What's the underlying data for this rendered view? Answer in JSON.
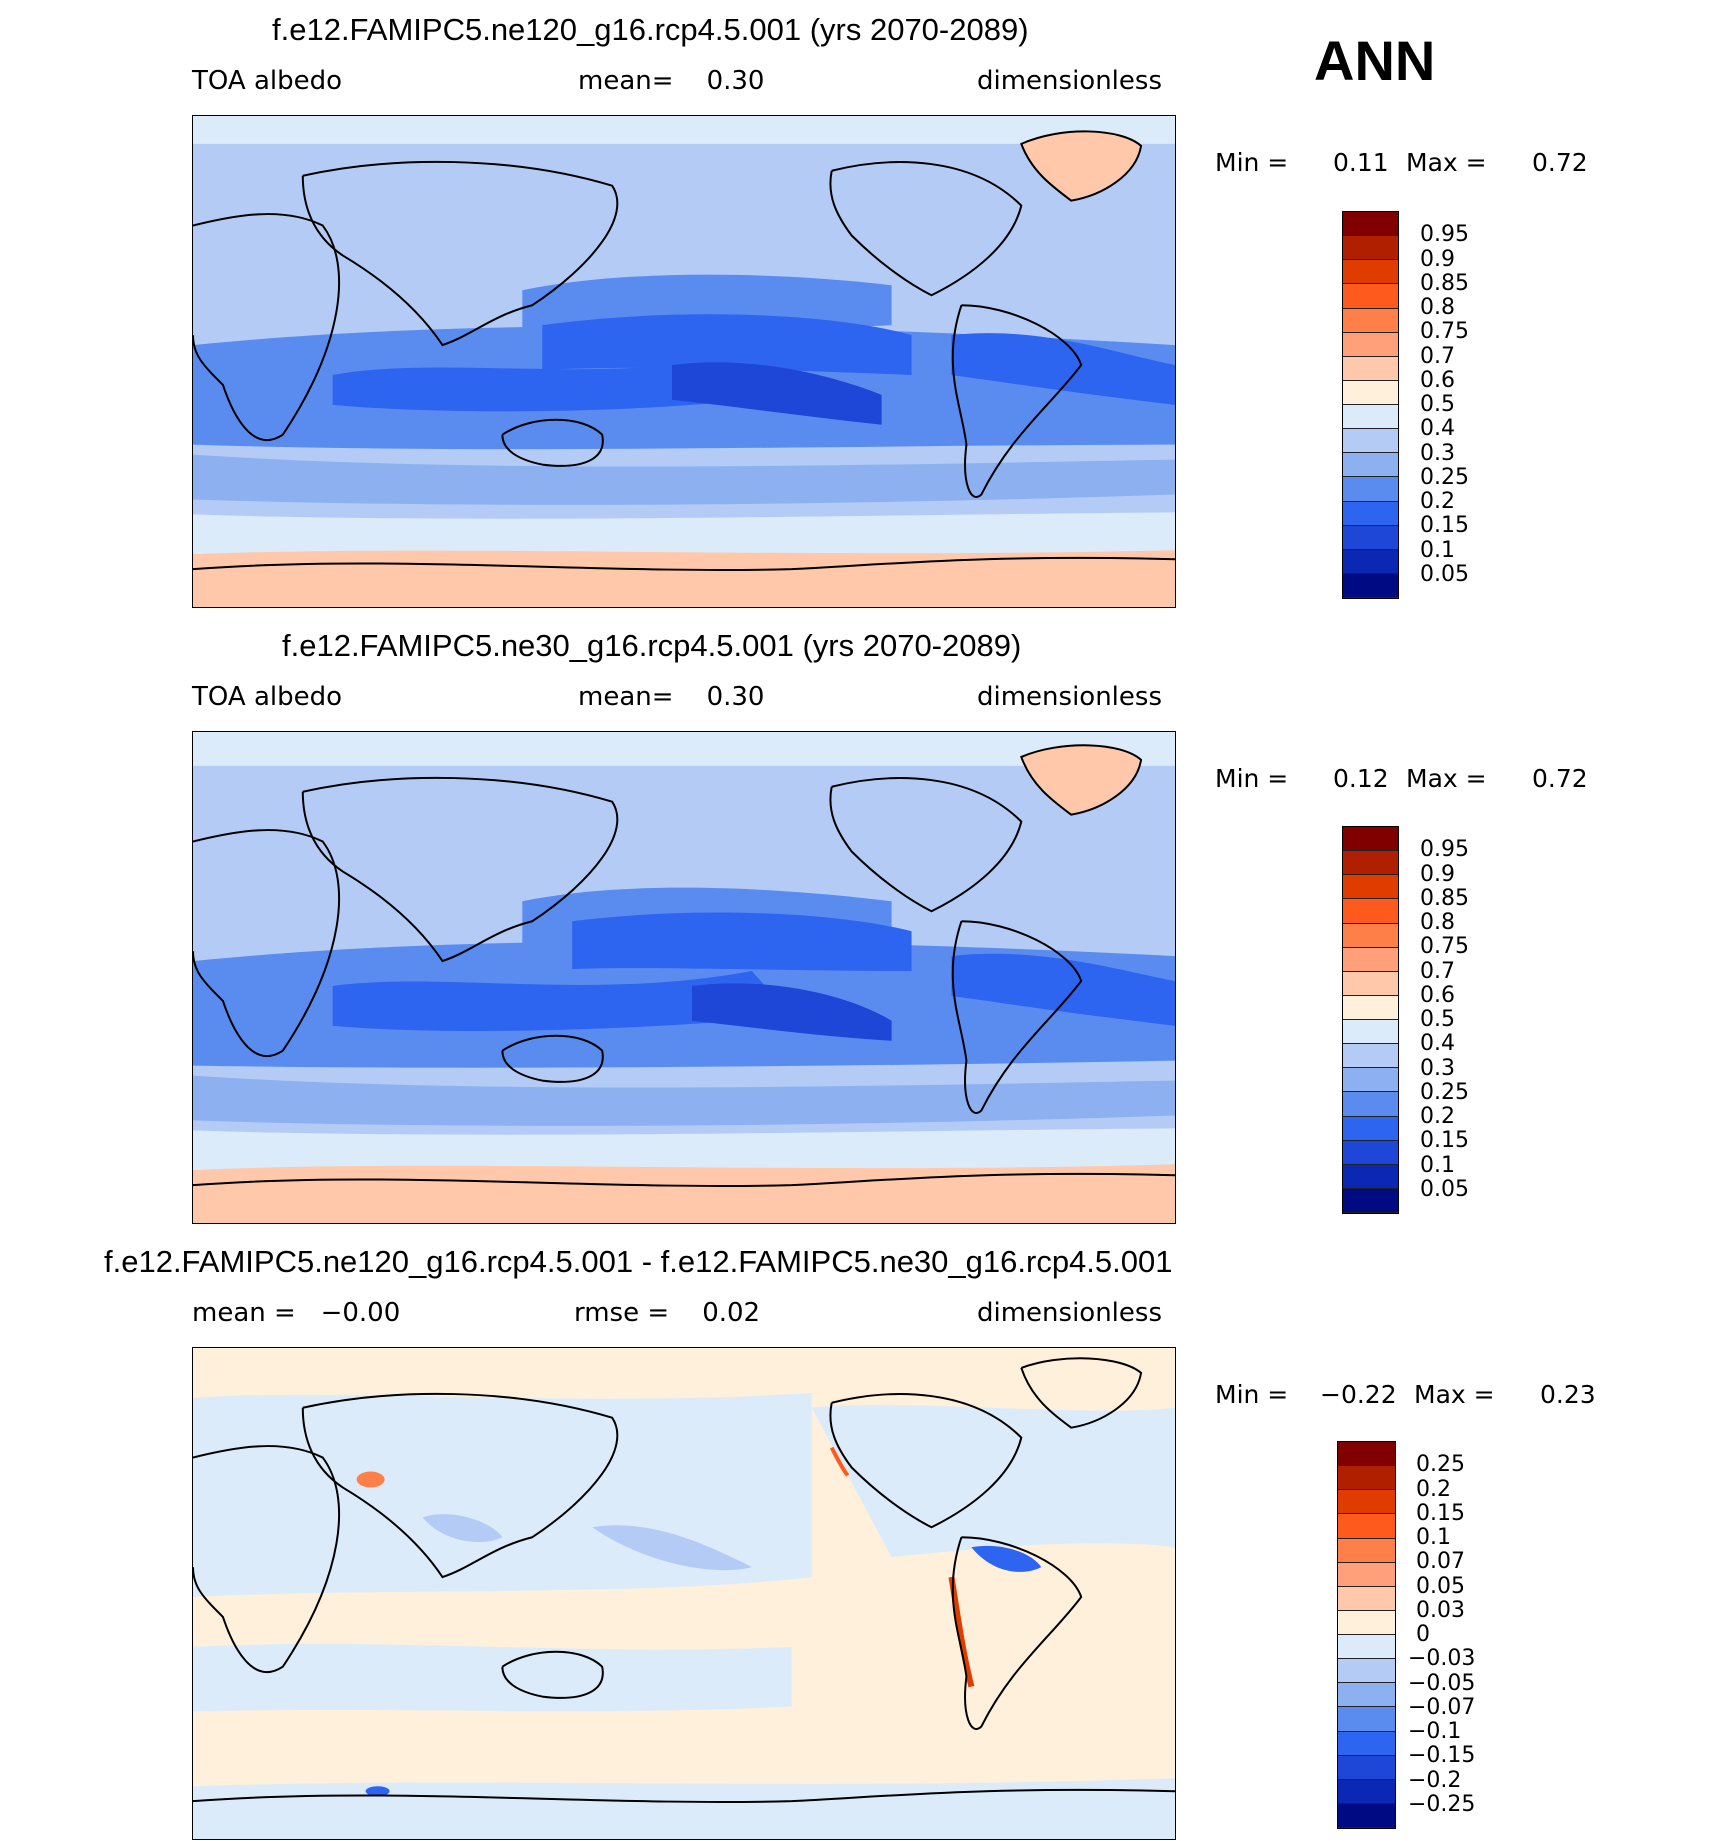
{
  "season": "ANN",
  "panels": [
    {
      "title": "f.e12.FAMIPC5.ne120_g16.rcp4.5.001 (yrs 2070-2089)",
      "left_label": "TOA albedo",
      "center_label": "mean=    0.30",
      "right_label": "dimensionless",
      "min_label": "Min =",
      "min_value": "0.11",
      "max_label": "Max =",
      "max_value": "0.72",
      "colorbar": {
        "labels": [
          "0.95",
          "0.9",
          "0.85",
          "0.8",
          "0.75",
          "0.7",
          "0.6",
          "0.5",
          "0.4",
          "0.3",
          "0.25",
          "0.2",
          "0.15",
          "0.1",
          "0.05"
        ],
        "colors": [
          "#800000",
          "#b02000",
          "#e03c00",
          "#ff5a1e",
          "#ff7f48",
          "#ffa07a",
          "#ffc8aa",
          "#fff0dc",
          "#dcebfa",
          "#b4ccf5",
          "#8cb0f0",
          "#5a8cf0",
          "#2d64f0",
          "#1e46d7",
          "#0a28b4",
          "#000a82"
        ]
      }
    },
    {
      "title": "f.e12.FAMIPC5.ne30_g16.rcp4.5.001 (yrs 2070-2089)",
      "left_label": "TOA albedo",
      "center_label": "mean=    0.30",
      "right_label": "dimensionless",
      "min_label": "Min =",
      "min_value": "0.12",
      "max_label": "Max =",
      "max_value": "0.72",
      "colorbar": {
        "labels": [
          "0.95",
          "0.9",
          "0.85",
          "0.8",
          "0.75",
          "0.7",
          "0.6",
          "0.5",
          "0.4",
          "0.3",
          "0.25",
          "0.2",
          "0.15",
          "0.1",
          "0.05"
        ],
        "colors": [
          "#800000",
          "#b02000",
          "#e03c00",
          "#ff5a1e",
          "#ff7f48",
          "#ffa07a",
          "#ffc8aa",
          "#fff0dc",
          "#dcebfa",
          "#b4ccf5",
          "#8cb0f0",
          "#5a8cf0",
          "#2d64f0",
          "#1e46d7",
          "#0a28b4",
          "#000a82"
        ]
      }
    },
    {
      "title": "f.e12.FAMIPC5.ne120_g16.rcp4.5.001 - f.e12.FAMIPC5.ne30_g16.rcp4.5.001",
      "left_label": "mean =   −0.00",
      "center_label": "rmse =    0.02",
      "right_label": "dimensionless",
      "min_label": "Min =",
      "min_value": "−0.22",
      "max_label": "Max =",
      "max_value": "0.23",
      "colorbar": {
        "labels": [
          "0.25",
          "0.2",
          "0.15",
          "0.1",
          "0.07",
          "0.05",
          "0.03",
          "0",
          "−0.03",
          "−0.05",
          "−0.07",
          "−0.1",
          "−0.15",
          "−0.2",
          "−0.25"
        ],
        "colors": [
          "#800000",
          "#b02000",
          "#e03c00",
          "#ff5a1e",
          "#ff7f48",
          "#ffa07a",
          "#ffc8aa",
          "#fff0dc",
          "#dcebfa",
          "#b4ccf5",
          "#8cb0f0",
          "#5a8cf0",
          "#2d64f0",
          "#1e46d7",
          "#0a28b4",
          "#000a82"
        ]
      }
    }
  ]
}
